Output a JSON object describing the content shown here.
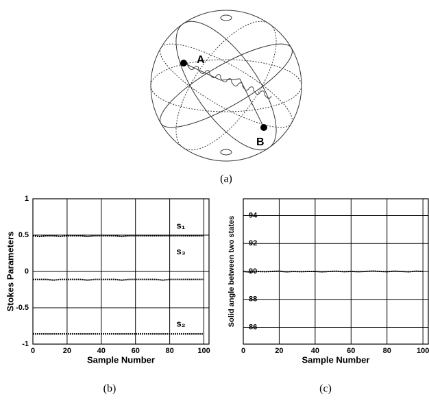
{
  "diagram": {
    "point_labels": [
      "A",
      "B"
    ],
    "caption": "(a)"
  },
  "chart_data": [
    {
      "type": "line",
      "caption": "(b)",
      "x_label": "Sample Number",
      "y_label": "Stokes Parameters",
      "x": [
        0,
        4,
        8,
        12,
        16,
        20,
        24,
        28,
        32,
        36,
        40,
        44,
        48,
        52,
        56,
        60,
        64,
        68,
        72,
        76,
        80,
        84,
        88,
        92,
        96,
        100
      ],
      "series": [
        {
          "name": "s₁",
          "color": "#000000",
          "values": [
            0.49,
            0.48,
            0.49,
            0.49,
            0.48,
            0.49,
            0.49,
            0.49,
            0.48,
            0.49,
            0.49,
            0.49,
            0.49,
            0.48,
            0.49,
            0.49,
            0.49,
            0.49,
            0.49,
            0.49,
            0.49,
            0.49,
            0.49,
            0.49,
            0.49,
            0.49
          ]
        },
        {
          "name": "s₃",
          "color": "#000000",
          "values": [
            -0.11,
            -0.11,
            -0.11,
            -0.12,
            -0.11,
            -0.11,
            -0.11,
            -0.11,
            -0.12,
            -0.11,
            -0.11,
            -0.11,
            -0.11,
            -0.12,
            -0.11,
            -0.11,
            -0.11,
            -0.11,
            -0.11,
            -0.12,
            -0.11,
            -0.11,
            -0.11,
            -0.11,
            -0.11,
            -0.11
          ]
        },
        {
          "name": "s₂",
          "color": "#000000",
          "values": [
            -0.86,
            -0.86,
            -0.86,
            -0.86,
            -0.86,
            -0.86,
            -0.86,
            -0.86,
            -0.86,
            -0.86,
            -0.86,
            -0.86,
            -0.86,
            -0.86,
            -0.86,
            -0.86,
            -0.86,
            -0.86,
            -0.86,
            -0.86,
            -0.86,
            -0.86,
            -0.86,
            -0.86,
            -0.86,
            -0.86
          ]
        }
      ],
      "xlim": [
        0,
        103
      ],
      "ylim": [
        -1,
        1
      ],
      "xticks": [
        0,
        20,
        40,
        60,
        80,
        100
      ],
      "yticks": [
        -1,
        -0.5,
        0,
        0.5,
        1
      ],
      "grid": true
    },
    {
      "type": "line",
      "caption": "(c)",
      "x_label": "Sample Number",
      "y_label": "Solid angle between two states",
      "x": [
        0,
        4,
        8,
        12,
        16,
        20,
        24,
        28,
        32,
        36,
        40,
        44,
        48,
        52,
        56,
        60,
        64,
        68,
        72,
        76,
        80,
        84,
        88,
        92,
        96,
        100
      ],
      "series": [
        {
          "color": "#000000",
          "values": [
            90.0,
            89.95,
            90.0,
            89.98,
            90.0,
            90.02,
            89.97,
            90.0,
            89.98,
            90.0,
            90.0,
            89.97,
            90.0,
            90.02,
            89.98,
            90.0,
            89.98,
            90.0,
            90.03,
            90.0,
            89.98,
            90.02,
            90.0,
            89.97,
            90.02,
            90.0
          ]
        }
      ],
      "xlim": [
        0,
        103
      ],
      "ylim": [
        84.8,
        95.2
      ],
      "xticks": [
        0,
        20,
        40,
        60,
        80,
        100
      ],
      "yticks": [
        86,
        88,
        90,
        92,
        94
      ],
      "grid": true
    }
  ]
}
